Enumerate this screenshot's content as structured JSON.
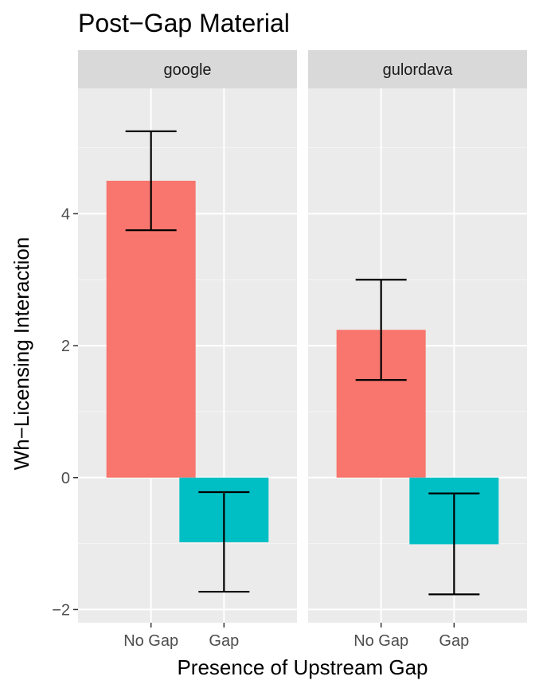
{
  "chart_data": {
    "type": "bar",
    "title": "Post−Gap Material",
    "xlabel": "Presence of Upstream Gap",
    "ylabel": "Wh−Licensing Interaction",
    "categories": [
      "No Gap",
      "Gap"
    ],
    "ylim": [
      -2.2,
      5.9
    ],
    "yticks": [
      -2,
      0,
      2,
      4
    ],
    "ytick_labels": [
      "−2",
      "0",
      "2",
      "4"
    ],
    "grid": true,
    "legend": "none",
    "colors": {
      "No Gap": "#F8766D",
      "Gap": "#00BFC4"
    },
    "panels": [
      {
        "label": "google",
        "bars": [
          {
            "category": "No Gap",
            "value": 4.5,
            "err_low": 3.75,
            "err_high": 5.25
          },
          {
            "category": "Gap",
            "value": -0.98,
            "err_low": -1.73,
            "err_high": -0.22
          }
        ]
      },
      {
        "label": "gulordava",
        "bars": [
          {
            "category": "No Gap",
            "value": 2.24,
            "err_low": 1.48,
            "err_high": 3.0
          },
          {
            "category": "Gap",
            "value": -1.01,
            "err_low": -1.77,
            "err_high": -0.24
          }
        ]
      }
    ]
  }
}
